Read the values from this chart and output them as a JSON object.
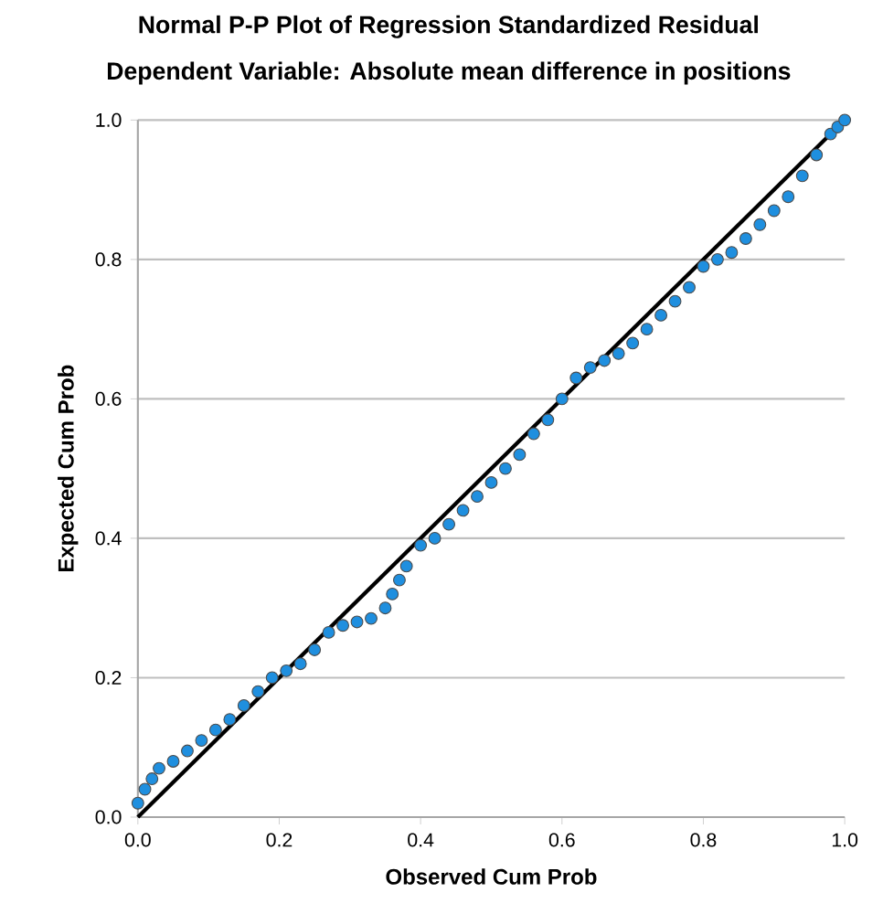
{
  "chart_data": {
    "type": "scatter",
    "title": "Normal P-P Plot of Regression Standardized Residual",
    "subtitle": "Dependent Variable: Absolute mean difference in positions",
    "xlabel": "Observed Cum Prob",
    "ylabel": "Expected Cum Prob",
    "xlim": [
      0,
      1
    ],
    "ylim": [
      0,
      1
    ],
    "xticks": [
      {
        "value": 0,
        "label": "0.0"
      },
      {
        "value": 0.2,
        "label": "0.2"
      },
      {
        "value": 0.4,
        "label": "0.4"
      },
      {
        "value": 0.6,
        "label": "0.6"
      },
      {
        "value": 0.8,
        "label": "0.8"
      },
      {
        "value": 1,
        "label": "1.0"
      }
    ],
    "yticks": [
      {
        "value": 0,
        "label": "0.0"
      },
      {
        "value": 0.2,
        "label": "0.2"
      },
      {
        "value": 0.4,
        "label": "0.4"
      },
      {
        "value": 0.6,
        "label": "0.6"
      },
      {
        "value": 0.8,
        "label": "0.8"
      },
      {
        "value": 1,
        "label": "1.0"
      }
    ],
    "grid": "y",
    "marker": "circle",
    "series": [
      {
        "color": "#1f8fdf",
        "x": [
          0.0,
          0.01,
          0.02,
          0.03,
          0.05,
          0.07,
          0.09,
          0.11,
          0.13,
          0.15,
          0.17,
          0.19,
          0.21,
          0.23,
          0.25,
          0.27,
          0.29,
          0.31,
          0.33,
          0.35,
          0.36,
          0.37,
          0.38,
          0.4,
          0.42,
          0.44,
          0.46,
          0.48,
          0.5,
          0.52,
          0.54,
          0.56,
          0.58,
          0.6,
          0.62,
          0.64,
          0.66,
          0.68,
          0.7,
          0.72,
          0.74,
          0.76,
          0.78,
          0.8,
          0.82,
          0.84,
          0.86,
          0.88,
          0.9,
          0.92,
          0.94,
          0.96,
          0.98,
          0.99,
          1.0
        ],
        "values": [
          0.02,
          0.04,
          0.055,
          0.07,
          0.08,
          0.095,
          0.11,
          0.125,
          0.14,
          0.16,
          0.18,
          0.2,
          0.21,
          0.22,
          0.24,
          0.265,
          0.275,
          0.28,
          0.285,
          0.3,
          0.32,
          0.34,
          0.36,
          0.39,
          0.4,
          0.42,
          0.44,
          0.46,
          0.48,
          0.5,
          0.52,
          0.55,
          0.57,
          0.6,
          0.63,
          0.645,
          0.655,
          0.665,
          0.68,
          0.7,
          0.72,
          0.74,
          0.76,
          0.79,
          0.8,
          0.81,
          0.83,
          0.85,
          0.87,
          0.89,
          0.92,
          0.95,
          0.98,
          0.99,
          1.0
        ]
      },
      {
        "type": "line",
        "marker": "none",
        "color": "#000000",
        "x": [
          0,
          1
        ],
        "values": [
          0,
          1
        ]
      }
    ]
  }
}
